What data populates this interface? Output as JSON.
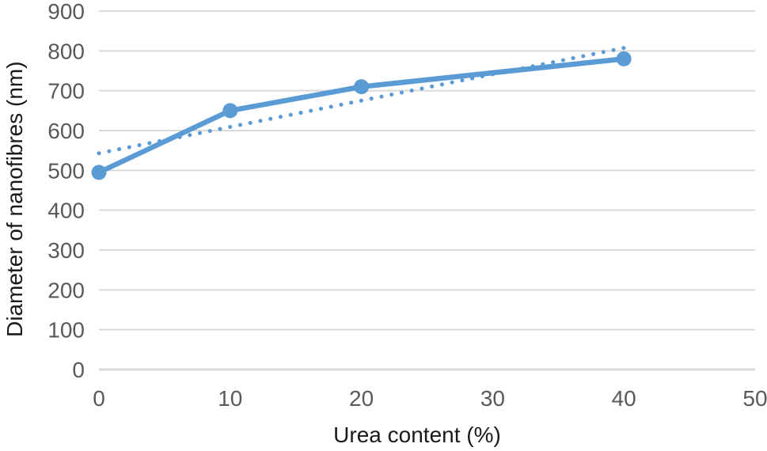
{
  "chart_data": {
    "type": "line",
    "title": "",
    "xlabel": "Urea content (%)",
    "ylabel": "Diameter of nanofibres (nm)",
    "x": [
      0,
      10,
      20,
      40
    ],
    "series": [
      {
        "name": "Diameter of nanofibres",
        "values": [
          495,
          650,
          710,
          780
        ],
        "color": "#5B9BD5",
        "line_width": 6.5,
        "marker": "circle",
        "marker_radius": 9.5
      }
    ],
    "trendline": {
      "type": "linear",
      "slope": 6.61,
      "intercept": 543,
      "x_range": [
        0,
        40
      ],
      "style": "dotted",
      "color": "#5B9BD5",
      "dot_width": 5,
      "dot_period": 13
    },
    "xlim": [
      0,
      50
    ],
    "ylim": [
      0,
      900
    ],
    "x_ticks": [
      0,
      10,
      20,
      30,
      40,
      50
    ],
    "y_ticks": [
      0,
      100,
      200,
      300,
      400,
      500,
      600,
      700,
      800,
      900
    ],
    "grid": "horizontal-only",
    "legend": "none",
    "colors": {
      "background": "#ffffff",
      "gridline": "#D9D9D9",
      "axis_line": "#D9D9D9",
      "tick_label": "#595959",
      "axis_title": "#1a1a1a"
    }
  }
}
